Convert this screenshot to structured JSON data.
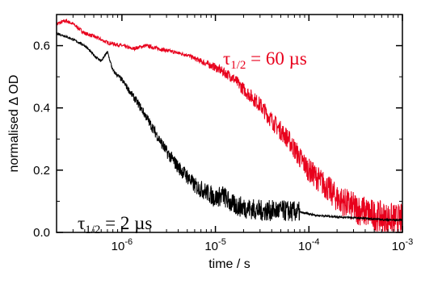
{
  "chart_data": {
    "type": "line",
    "xlabel": "time / s",
    "ylabel": "normalised Δ OD",
    "xscale": "log",
    "xlim": [
      2e-07,
      0.001
    ],
    "ylim": [
      0,
      0.7
    ],
    "grid": false,
    "x_ticks": [
      {
        "value": 1e-06,
        "base": "10",
        "exp": "-6"
      },
      {
        "value": 1e-05,
        "base": "10",
        "exp": "-5"
      },
      {
        "value": 0.0001,
        "base": "10",
        "exp": "-4"
      },
      {
        "value": 0.001,
        "base": "10",
        "exp": "-3"
      }
    ],
    "y_ticks": [
      {
        "value": 0.0,
        "label": "0.0"
      },
      {
        "value": 0.2,
        "label": "0.2"
      },
      {
        "value": 0.4,
        "label": "0.4"
      },
      {
        "value": 0.6,
        "label": "0.6"
      }
    ],
    "series": [
      {
        "color": "#e8001c",
        "x": [
          2e-07,
          2.5e-07,
          3e-07,
          4e-07,
          5e-07,
          7e-07,
          1e-06,
          1.3e-06,
          1.8e-06,
          2.5e-06,
          3.5e-06,
          5e-06,
          7e-06,
          1e-05,
          1.5e-05,
          2e-05,
          3e-05,
          4e-05,
          6e-05,
          8e-05,
          0.0001,
          0.00015,
          0.0002,
          0.0003,
          0.0005,
          0.0007,
          0.001
        ],
        "y": [
          0.67,
          0.68,
          0.67,
          0.64,
          0.63,
          0.61,
          0.6,
          0.59,
          0.6,
          0.59,
          0.58,
          0.57,
          0.55,
          0.53,
          0.5,
          0.46,
          0.41,
          0.36,
          0.3,
          0.24,
          0.2,
          0.15,
          0.11,
          0.08,
          0.055,
          0.045,
          0.04
        ]
      },
      {
        "color": "#000000",
        "x": [
          2e-07,
          2.5e-07,
          3e-07,
          4e-07,
          5e-07,
          6e-07,
          7e-07,
          8e-07,
          1e-06,
          1.3e-06,
          1.6e-06,
          2e-06,
          2.5e-06,
          3e-06,
          4e-06,
          5e-06,
          6e-06,
          8e-06,
          1e-05,
          1.2e-05,
          1.5e-05,
          2e-05,
          3e-05,
          5e-05,
          8e-05,
          0.00012,
          0.0002,
          0.0004,
          0.0007,
          0.001
        ],
        "y": [
          0.64,
          0.63,
          0.62,
          0.6,
          0.57,
          0.55,
          0.58,
          0.52,
          0.49,
          0.44,
          0.4,
          0.35,
          0.3,
          0.26,
          0.21,
          0.18,
          0.15,
          0.13,
          0.11,
          0.12,
          0.09,
          0.08,
          0.07,
          0.07,
          0.065,
          0.055,
          0.05,
          0.045,
          0.04,
          0.04
        ]
      }
    ],
    "annotations": [
      {
        "symbol": "τ",
        "sub": "1/2",
        "rest": " = 60 µs",
        "color": "#e8001c"
      },
      {
        "symbol": "τ",
        "sub": "1/2",
        "rest": " = 2 µs",
        "color": "#000000"
      }
    ]
  }
}
